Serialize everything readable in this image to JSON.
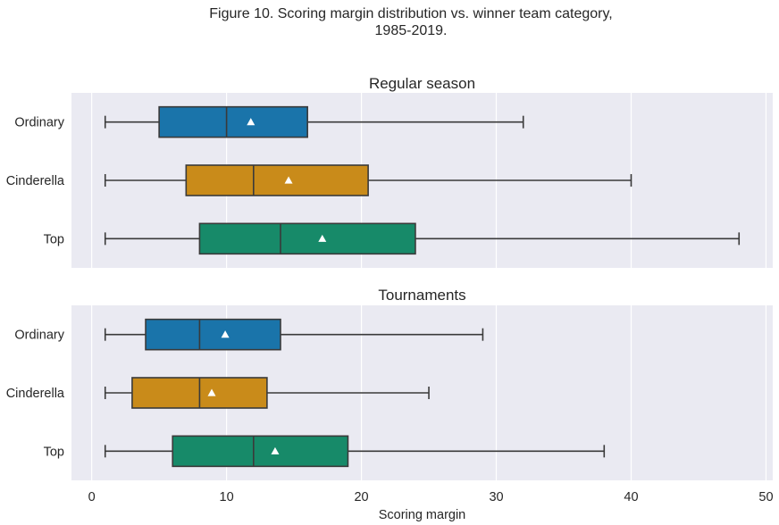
{
  "figure_title_line1": "Figure 10. Scoring margin distribution vs. winner team category,",
  "figure_title_line2": "1985-2019.",
  "colors": {
    "panel_bg": "#eaeaf2",
    "grid": "#ffffff",
    "ordinary": "#1a74aa",
    "cinderella": "#c98b1a",
    "top": "#178a69",
    "line": "#3a3a3a",
    "mean_marker": "#ffffff"
  },
  "chart_data": [
    {
      "type": "box",
      "title": "Regular season",
      "xlabel": "",
      "xlim": [
        -1.5,
        50.5
      ],
      "xticks": [
        0,
        10,
        20,
        30,
        40,
        50
      ],
      "legend": "none",
      "grid": "vertical",
      "categories": [
        "Ordinary",
        "Cinderella",
        "Top"
      ],
      "boxes": [
        {
          "name": "Ordinary",
          "whisker_low": 1,
          "q1": 5,
          "median": 10,
          "q3": 16,
          "whisker_high": 32,
          "mean": 11.8
        },
        {
          "name": "Cinderella",
          "whisker_low": 1,
          "q1": 7,
          "median": 12,
          "q3": 20.5,
          "whisker_high": 40,
          "mean": 14.6
        },
        {
          "name": "Top",
          "whisker_low": 1,
          "q1": 8,
          "median": 14,
          "q3": 24,
          "whisker_high": 48,
          "mean": 17.1
        }
      ]
    },
    {
      "type": "box",
      "title": "Tournaments",
      "xlabel": "Scoring margin",
      "xlim": [
        -1.5,
        50.5
      ],
      "xticks": [
        0,
        10,
        20,
        30,
        40,
        50
      ],
      "legend": "none",
      "grid": "vertical",
      "categories": [
        "Ordinary",
        "Cinderella",
        "Top"
      ],
      "boxes": [
        {
          "name": "Ordinary",
          "whisker_low": 1,
          "q1": 4,
          "median": 8,
          "q3": 14,
          "whisker_high": 29,
          "mean": 9.9
        },
        {
          "name": "Cinderella",
          "whisker_low": 1,
          "q1": 3,
          "median": 8,
          "q3": 13,
          "whisker_high": 25,
          "mean": 8.9
        },
        {
          "name": "Top",
          "whisker_low": 1,
          "q1": 6,
          "median": 12,
          "q3": 19,
          "whisker_high": 38,
          "mean": 13.6
        }
      ]
    }
  ]
}
